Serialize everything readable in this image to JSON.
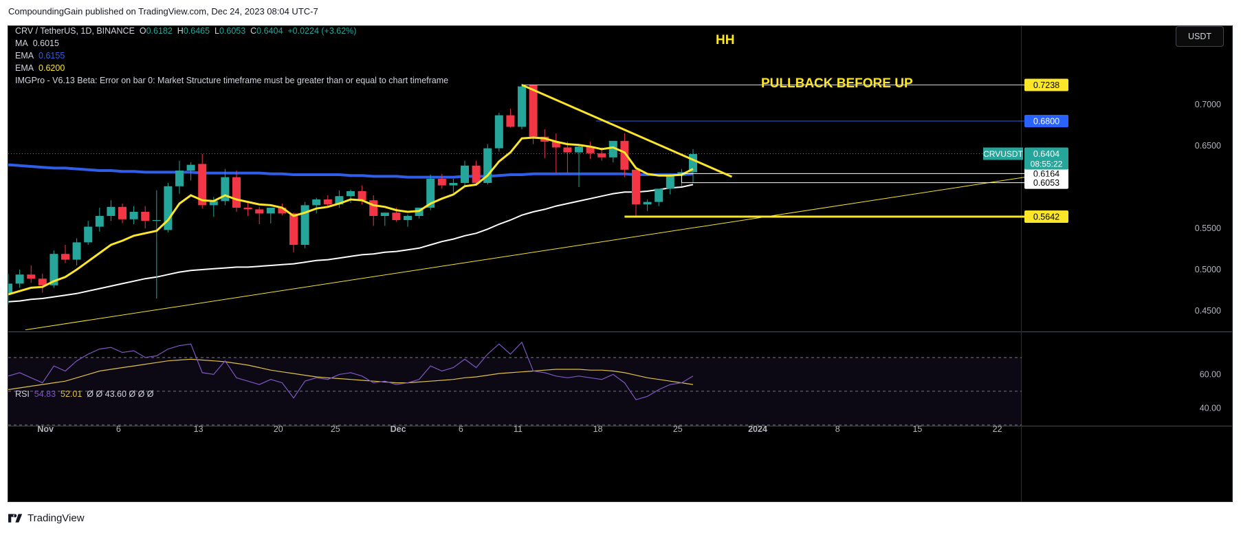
{
  "header": {
    "published": "CompoundingGain published on TradingView.com, Dec 24, 2023 08:04 UTC-7"
  },
  "legend": {
    "symbol": "CRV / TetherUS, 1D, BINANCE",
    "o_label": "O",
    "o": "0.6182",
    "h_label": "H",
    "h": "0.6465",
    "l_label": "L",
    "l": "0.6053",
    "c_label": "C",
    "c": "0.6404",
    "change": "+0.0224 (+3.62%)",
    "ma_label": "MA",
    "ma": "0.6015",
    "ema1_label": "EMA",
    "ema1": "0.6155",
    "ema2_label": "EMA",
    "ema2": "0.6200",
    "indicator": "IMGPro - V6.13 Beta: Error on bar 0: Market Structure timeframe must be greater than or equal to chart timeframe"
  },
  "currency_button": "USDT",
  "rsi_legend": {
    "label": "RSI",
    "v1": "54.83",
    "v2": "52.01",
    "rest": "Ø  Ø  43.60  Ø  Ø  Ø"
  },
  "footer": {
    "brand": "TradingView"
  },
  "colors": {
    "up": "#26a69a",
    "down": "#f23645",
    "ema_yellow": "#fbe62a",
    "ma_blue": "#2f5ee8",
    "ema_white": "#ffffff",
    "rsi": "#7e57c2",
    "rsi_ma": "#e0c341"
  },
  "chart_data": {
    "type": "candlestick",
    "title": "CRV / TetherUS, 1D, BINANCE",
    "ylim": [
      0.425,
      0.77
    ],
    "y_ticks": [
      "0.7000",
      "0.6500",
      "0.5500",
      "0.5000",
      "0.4500"
    ],
    "x_ticks": [
      "Nov",
      "6",
      "13",
      "20",
      "25",
      "Dec",
      "6",
      "11",
      "18",
      "25",
      "2024",
      "8",
      "15",
      "22"
    ],
    "candles": [
      [
        0.471,
        0.495,
        0.458,
        0.483
      ],
      [
        0.483,
        0.5,
        0.478,
        0.494
      ],
      [
        0.494,
        0.505,
        0.484,
        0.489
      ],
      [
        0.489,
        0.495,
        0.472,
        0.481
      ],
      [
        0.481,
        0.523,
        0.478,
        0.519
      ],
      [
        0.519,
        0.53,
        0.508,
        0.512
      ],
      [
        0.512,
        0.538,
        0.505,
        0.533
      ],
      [
        0.533,
        0.559,
        0.53,
        0.552
      ],
      [
        0.552,
        0.575,
        0.546,
        0.565
      ],
      [
        0.565,
        0.584,
        0.559,
        0.576
      ],
      [
        0.576,
        0.58,
        0.556,
        0.561
      ],
      [
        0.561,
        0.577,
        0.555,
        0.57
      ],
      [
        0.57,
        0.577,
        0.55,
        0.559
      ],
      [
        0.559,
        0.596,
        0.465,
        0.56
      ],
      [
        0.548,
        0.605,
        0.545,
        0.601
      ],
      [
        0.601,
        0.632,
        0.592,
        0.62
      ],
      [
        0.62,
        0.63,
        0.608,
        0.627
      ],
      [
        0.628,
        0.64,
        0.574,
        0.578
      ],
      [
        0.578,
        0.588,
        0.564,
        0.583
      ],
      [
        0.583,
        0.622,
        0.578,
        0.612
      ],
      [
        0.612,
        0.62,
        0.57,
        0.575
      ],
      [
        0.575,
        0.582,
        0.565,
        0.573
      ],
      [
        0.573,
        0.576,
        0.555,
        0.568
      ],
      [
        0.568,
        0.575,
        0.556,
        0.575
      ],
      [
        0.575,
        0.58,
        0.566,
        0.568
      ],
      [
        0.568,
        0.569,
        0.521,
        0.53
      ],
      [
        0.53,
        0.582,
        0.526,
        0.578
      ],
      [
        0.578,
        0.587,
        0.568,
        0.585
      ],
      [
        0.585,
        0.59,
        0.575,
        0.579
      ],
      [
        0.579,
        0.596,
        0.575,
        0.589
      ],
      [
        0.589,
        0.597,
        0.581,
        0.595
      ],
      [
        0.595,
        0.602,
        0.579,
        0.584
      ],
      [
        0.584,
        0.59,
        0.553,
        0.565
      ],
      [
        0.565,
        0.569,
        0.553,
        0.569
      ],
      [
        0.569,
        0.575,
        0.558,
        0.56
      ],
      [
        0.56,
        0.567,
        0.552,
        0.565
      ],
      [
        0.565,
        0.575,
        0.562,
        0.575
      ],
      [
        0.575,
        0.615,
        0.572,
        0.61
      ],
      [
        0.61,
        0.616,
        0.598,
        0.602
      ],
      [
        0.602,
        0.61,
        0.593,
        0.605
      ],
      [
        0.605,
        0.632,
        0.602,
        0.626
      ],
      [
        0.626,
        0.632,
        0.603,
        0.605
      ],
      [
        0.605,
        0.652,
        0.603,
        0.647
      ],
      [
        0.647,
        0.69,
        0.643,
        0.687
      ],
      [
        0.687,
        0.695,
        0.672,
        0.673
      ],
      [
        0.673,
        0.725,
        0.67,
        0.722
      ],
      [
        0.724,
        0.724,
        0.652,
        0.661
      ],
      [
        0.661,
        0.67,
        0.635,
        0.655
      ],
      [
        0.655,
        0.665,
        0.617,
        0.648
      ],
      [
        0.648,
        0.655,
        0.617,
        0.642
      ],
      [
        0.642,
        0.65,
        0.6,
        0.649
      ],
      [
        0.649,
        0.655,
        0.634,
        0.641
      ],
      [
        0.641,
        0.648,
        0.632,
        0.636
      ],
      [
        0.636,
        0.654,
        0.63,
        0.656
      ],
      [
        0.656,
        0.665,
        0.612,
        0.621
      ],
      [
        0.621,
        0.621,
        0.564,
        0.579
      ],
      [
        0.579,
        0.585,
        0.571,
        0.582
      ],
      [
        0.582,
        0.595,
        0.577,
        0.598
      ],
      [
        0.598,
        0.616,
        0.591,
        0.614
      ],
      [
        0.614,
        0.622,
        0.601,
        0.618
      ],
      [
        0.618,
        0.646,
        0.605,
        0.64
      ]
    ],
    "ema_fast": [
      0.47,
      0.474,
      0.478,
      0.479,
      0.486,
      0.491,
      0.5,
      0.51,
      0.52,
      0.53,
      0.535,
      0.541,
      0.544,
      0.547,
      0.56,
      0.58,
      0.59,
      0.584,
      0.583,
      0.59,
      0.585,
      0.582,
      0.579,
      0.578,
      0.575,
      0.565,
      0.569,
      0.574,
      0.576,
      0.58,
      0.585,
      0.584,
      0.578,
      0.576,
      0.572,
      0.57,
      0.571,
      0.58,
      0.586,
      0.591,
      0.601,
      0.603,
      0.614,
      0.631,
      0.642,
      0.659,
      0.66,
      0.659,
      0.655,
      0.652,
      0.651,
      0.649,
      0.646,
      0.648,
      0.642,
      0.623,
      0.616,
      0.614,
      0.614,
      0.615,
      0.622
    ],
    "ma": [
      0.627,
      0.626,
      0.625,
      0.624,
      0.623,
      0.623,
      0.622,
      0.621,
      0.62,
      0.62,
      0.619,
      0.619,
      0.618,
      0.618,
      0.618,
      0.618,
      0.618,
      0.617,
      0.617,
      0.617,
      0.617,
      0.617,
      0.617,
      0.616,
      0.616,
      0.615,
      0.615,
      0.615,
      0.615,
      0.615,
      0.614,
      0.614,
      0.613,
      0.613,
      0.613,
      0.612,
      0.612,
      0.612,
      0.612,
      0.612,
      0.613,
      0.613,
      0.613,
      0.614,
      0.615,
      0.615,
      0.616,
      0.616,
      0.616,
      0.616,
      0.616,
      0.616,
      0.616,
      0.616,
      0.616,
      0.615,
      0.615,
      0.615,
      0.615,
      0.615,
      0.616
    ],
    "ema_slow": [
      0.461,
      0.462,
      0.464,
      0.465,
      0.467,
      0.469,
      0.471,
      0.474,
      0.477,
      0.48,
      0.483,
      0.486,
      0.489,
      0.491,
      0.494,
      0.497,
      0.499,
      0.5,
      0.501,
      0.502,
      0.503,
      0.503,
      0.504,
      0.505,
      0.506,
      0.507,
      0.509,
      0.511,
      0.512,
      0.514,
      0.516,
      0.518,
      0.519,
      0.521,
      0.522,
      0.524,
      0.526,
      0.53,
      0.534,
      0.537,
      0.541,
      0.544,
      0.549,
      0.555,
      0.56,
      0.566,
      0.57,
      0.573,
      0.577,
      0.58,
      0.583,
      0.586,
      0.589,
      0.592,
      0.594,
      0.594,
      0.595,
      0.597,
      0.599,
      0.6,
      0.603
    ],
    "rsi": [
      59,
      61,
      58,
      55,
      65,
      62,
      68,
      72,
      75,
      76,
      73,
      74,
      70,
      71,
      75,
      77,
      78,
      61,
      60,
      68,
      58,
      56,
      54,
      57,
      55,
      46,
      56,
      58,
      57,
      60,
      61,
      59,
      55,
      56,
      54,
      55,
      57,
      65,
      62,
      64,
      69,
      64,
      72,
      78,
      72,
      79,
      62,
      61,
      59,
      58,
      59,
      58,
      57,
      60,
      55,
      45,
      47,
      51,
      54,
      55,
      59
    ],
    "rsi_ma": [
      51,
      52,
      53,
      54,
      55,
      56,
      58,
      60,
      62,
      63,
      64,
      65,
      66,
      67,
      68,
      68.5,
      69,
      68.5,
      68,
      67.5,
      66.5,
      65.5,
      64,
      62.5,
      61.5,
      60.5,
      59.5,
      58.5,
      58,
      57.5,
      57,
      56.5,
      56,
      55.5,
      55,
      55,
      55.5,
      56,
      56.5,
      57,
      58,
      58.5,
      59.5,
      60.5,
      61,
      61.5,
      62,
      62.5,
      63,
      63,
      63,
      62.5,
      62.5,
      62,
      61,
      59.5,
      58,
      57,
      56,
      55,
      54
    ],
    "rsi_ylim": [
      30,
      85
    ],
    "rsi_ticks": [
      "60.00",
      "40.00"
    ],
    "price_labels": [
      {
        "text": "0.7238",
        "value": 0.7238,
        "style": "yellow"
      },
      {
        "text": "0.6800",
        "value": 0.68,
        "style": "blue"
      },
      {
        "text": "0.6164",
        "value": 0.6164,
        "style": "white"
      },
      {
        "text": "0.6053",
        "value": 0.6053,
        "style": "white"
      },
      {
        "text": "0.5642",
        "value": 0.5642,
        "style": "yellow"
      }
    ],
    "current_price": {
      "symbol": "CRVUSDT",
      "price": "0.6404",
      "countdown": "08:55:22",
      "value": 0.6404
    },
    "annotations": [
      {
        "text": "HH"
      },
      {
        "text": "PULLBACK BEFORE UP"
      }
    ]
  }
}
